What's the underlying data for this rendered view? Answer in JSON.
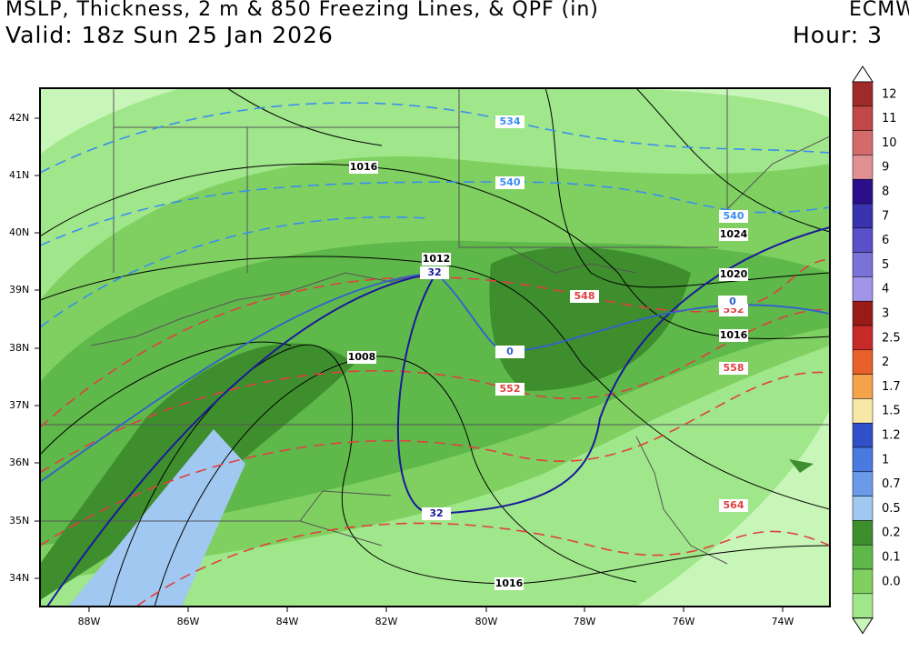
{
  "header": {
    "title": "MSLP, Thickness, 2 m & 850 Freezing Lines, & QPF (in)",
    "model": "ECMW",
    "valid": "Valid: 18z Sun 25 Jan 2026",
    "hour": "Hour: 3"
  },
  "map": {
    "lat_labels": [
      "42N",
      "41N",
      "40N",
      "39N",
      "38N",
      "37N",
      "36N",
      "35N",
      "34N"
    ],
    "lon_labels": [
      "88W",
      "86W",
      "84W",
      "82W",
      "80W",
      "78W",
      "76W",
      "74W"
    ],
    "isobar_labels": [
      "1016",
      "1012",
      "1008",
      "1024",
      "1020",
      "1016",
      "1016"
    ],
    "thickness_labels": [
      "534",
      "540",
      "540",
      "548",
      "552",
      "552",
      "558",
      "564"
    ],
    "freezing_labels": [
      "32",
      "0",
      "0",
      "32"
    ]
  },
  "colorbar": {
    "labels": [
      "12",
      "11",
      "10",
      "9",
      "8",
      "7",
      "6",
      "5",
      "4",
      "3",
      "2.5",
      "2",
      "1.7",
      "1.5",
      "1.2",
      "1",
      "0.7",
      "0.5",
      "0.2",
      "0.1",
      "0.0"
    ]
  }
}
